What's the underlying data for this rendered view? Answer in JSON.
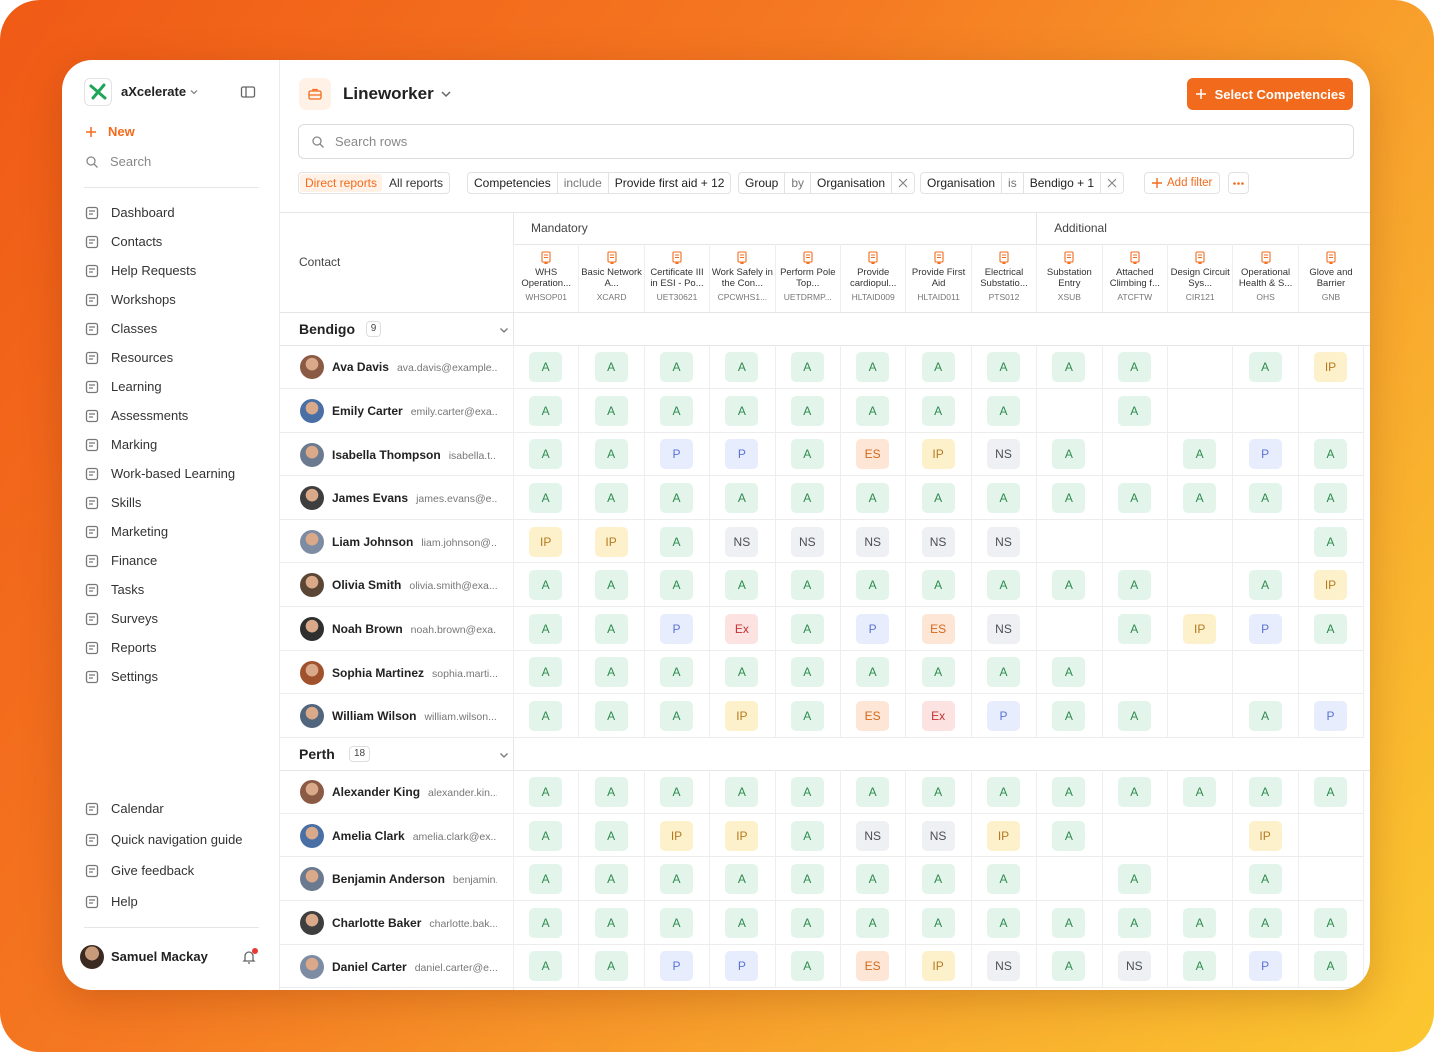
{
  "sidebar": {
    "brand": "aXcelerate",
    "new": "New",
    "search": "Search",
    "nav": [
      "Dashboard",
      "Contacts",
      "Help Requests",
      "Workshops",
      "Classes",
      "Resources",
      "Learning",
      "Assessments",
      "Marking",
      "Work-based Learning",
      "Skills",
      "Marketing",
      "Finance",
      "Tasks",
      "Surveys",
      "Reports",
      "Settings"
    ],
    "footer_nav": [
      "Calendar",
      "Quick navigation guide",
      "Give feedback",
      "Help"
    ],
    "user": "Samuel Mackay"
  },
  "header": {
    "title": "Lineworker",
    "button": "Select Competencies"
  },
  "search": {
    "placeholder": "Search rows"
  },
  "filters": {
    "tabs": [
      "Direct reports",
      "All reports"
    ],
    "chips": [
      {
        "field": "Competencies",
        "operator": "include",
        "value": "Provide first aid + 12"
      },
      {
        "field": "Group",
        "operator": "by",
        "value": "Organisation"
      },
      {
        "field": "Organisation",
        "operator": "is",
        "value": "Bendigo + 1"
      }
    ],
    "add": "Add filter"
  },
  "table": {
    "contact_header": "Contact",
    "column_groups": [
      {
        "label": "Mandatory",
        "columns": [
          {
            "name": "WHS Operation...",
            "code": "WHSOP01"
          },
          {
            "name": "Basic Network A...",
            "code": "XCARD"
          },
          {
            "name": "Certificate III in ESI - Po...",
            "code": "UET30621"
          },
          {
            "name": "Work Safely in the Con...",
            "code": "CPCWHS1..."
          },
          {
            "name": "Perform Pole Top...",
            "code": "UETDRMP..."
          },
          {
            "name": "Provide cardiopul...",
            "code": "HLTAID009"
          },
          {
            "name": "Provide First Aid",
            "code": "HLTAID011"
          },
          {
            "name": "Electrical Substatio...",
            "code": "PTS012"
          }
        ]
      },
      {
        "label": "Additional",
        "columns": [
          {
            "name": "Substation Entry",
            "code": "XSUB"
          },
          {
            "name": "Attached Climbing f...",
            "code": "ATCFTW"
          },
          {
            "name": "Design Circuit Sys...",
            "code": "CIR121"
          },
          {
            "name": "Operational Health & S...",
            "code": "OHS"
          },
          {
            "name": "Glove and Barrier",
            "code": "GNB"
          }
        ]
      }
    ],
    "groups": [
      {
        "name": "Bendigo",
        "count": 9,
        "rows": [
          {
            "name": "Ava Davis",
            "email": "ava.davis@example...",
            "cells": [
              "A",
              "A",
              "A",
              "A",
              "A",
              "A",
              "A",
              "A",
              "A",
              "A",
              null,
              "A",
              "IP"
            ]
          },
          {
            "name": "Emily Carter",
            "email": "emily.carter@exa...",
            "cells": [
              "A",
              "A",
              "A",
              "A",
              "A",
              "A",
              "A",
              "A",
              null,
              "A",
              null,
              null,
              null
            ]
          },
          {
            "name": "Isabella Thompson",
            "email": "isabella.t...",
            "cells": [
              "A",
              "A",
              "P",
              "P",
              "A",
              "ES",
              "IP",
              "NS",
              "A",
              null,
              "A",
              "P",
              "A"
            ]
          },
          {
            "name": "James Evans",
            "email": "james.evans@e...",
            "cells": [
              "A",
              "A",
              "A",
              "A",
              "A",
              "A",
              "A",
              "A",
              "A",
              "A",
              "A",
              "A",
              "A"
            ]
          },
          {
            "name": "Liam Johnson",
            "email": "liam.johnson@...",
            "cells": [
              "IP",
              "IP",
              "A",
              "NS",
              "NS",
              "NS",
              "NS",
              "NS",
              null,
              null,
              null,
              null,
              "A"
            ]
          },
          {
            "name": "Olivia Smith",
            "email": "olivia.smith@exa...",
            "cells": [
              "A",
              "A",
              "A",
              "A",
              "A",
              "A",
              "A",
              "A",
              "A",
              "A",
              null,
              "A",
              "IP"
            ]
          },
          {
            "name": "Noah Brown",
            "email": "noah.brown@exa...",
            "cells": [
              "A",
              "A",
              "P",
              "Ex",
              "A",
              "P",
              "ES",
              "NS",
              null,
              "A",
              "IP",
              "P",
              "A"
            ]
          },
          {
            "name": "Sophia Martinez",
            "email": "sophia.marti...",
            "cells": [
              "A",
              "A",
              "A",
              "A",
              "A",
              "A",
              "A",
              "A",
              "A",
              null,
              null,
              null,
              null
            ]
          },
          {
            "name": "William Wilson",
            "email": "william.wilson...",
            "cells": [
              "A",
              "A",
              "A",
              "IP",
              "A",
              "ES",
              "Ex",
              "P",
              "A",
              "A",
              null,
              "A",
              "P"
            ]
          }
        ]
      },
      {
        "name": "Perth",
        "count": 18,
        "rows": [
          {
            "name": "Alexander King",
            "email": "alexander.kin...",
            "cells": [
              "A",
              "A",
              "A",
              "A",
              "A",
              "A",
              "A",
              "A",
              "A",
              "A",
              "A",
              "A",
              "A"
            ]
          },
          {
            "name": "Amelia Clark",
            "email": "amelia.clark@ex...",
            "cells": [
              "A",
              "A",
              "IP",
              "IP",
              "A",
              "NS",
              "NS",
              "IP",
              "A",
              null,
              null,
              "IP",
              null
            ]
          },
          {
            "name": "Benjamin Anderson",
            "email": "benjamin...",
            "cells": [
              "A",
              "A",
              "A",
              "A",
              "A",
              "A",
              "A",
              "A",
              null,
              "A",
              null,
              "A",
              null
            ]
          },
          {
            "name": "Charlotte Baker",
            "email": "charlotte.bak...",
            "cells": [
              "A",
              "A",
              "A",
              "A",
              "A",
              "A",
              "A",
              "A",
              "A",
              "A",
              "A",
              "A",
              "A"
            ]
          },
          {
            "name": "Daniel Carter",
            "email": "daniel.carter@e...",
            "cells": [
              "A",
              "A",
              "P",
              "P",
              "A",
              "ES",
              "IP",
              "NS",
              "A",
              "NS",
              "A",
              "P",
              "A"
            ]
          }
        ]
      }
    ]
  }
}
